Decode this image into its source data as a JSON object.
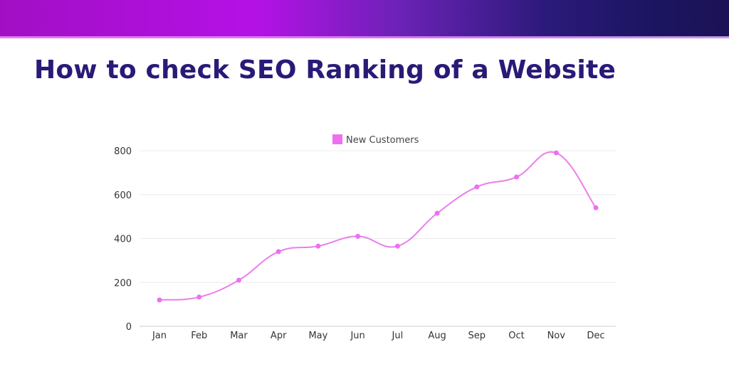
{
  "page": {
    "title": "How to check SEO Ranking of a Website"
  },
  "colors": {
    "title": "#2a1a78",
    "series": "#f06ef0",
    "line": "#ea7eea",
    "grid": "#ececec",
    "axis": "#cccccc"
  },
  "chart_data": {
    "type": "line",
    "title": "",
    "xlabel": "",
    "ylabel": "",
    "categories": [
      "Jan",
      "Feb",
      "Mar",
      "Apr",
      "May",
      "Jun",
      "Jul",
      "Aug",
      "Sep",
      "Oct",
      "Nov",
      "Dec"
    ],
    "series": [
      {
        "name": "New Customers",
        "values": [
          120,
          133,
          210,
          340,
          365,
          410,
          365,
          515,
          635,
          680,
          790,
          540
        ]
      }
    ],
    "ylim": [
      0,
      800
    ],
    "yticks": [
      0,
      200,
      400,
      600,
      800
    ],
    "grid": true,
    "legend": "top-center",
    "smooth": true
  }
}
